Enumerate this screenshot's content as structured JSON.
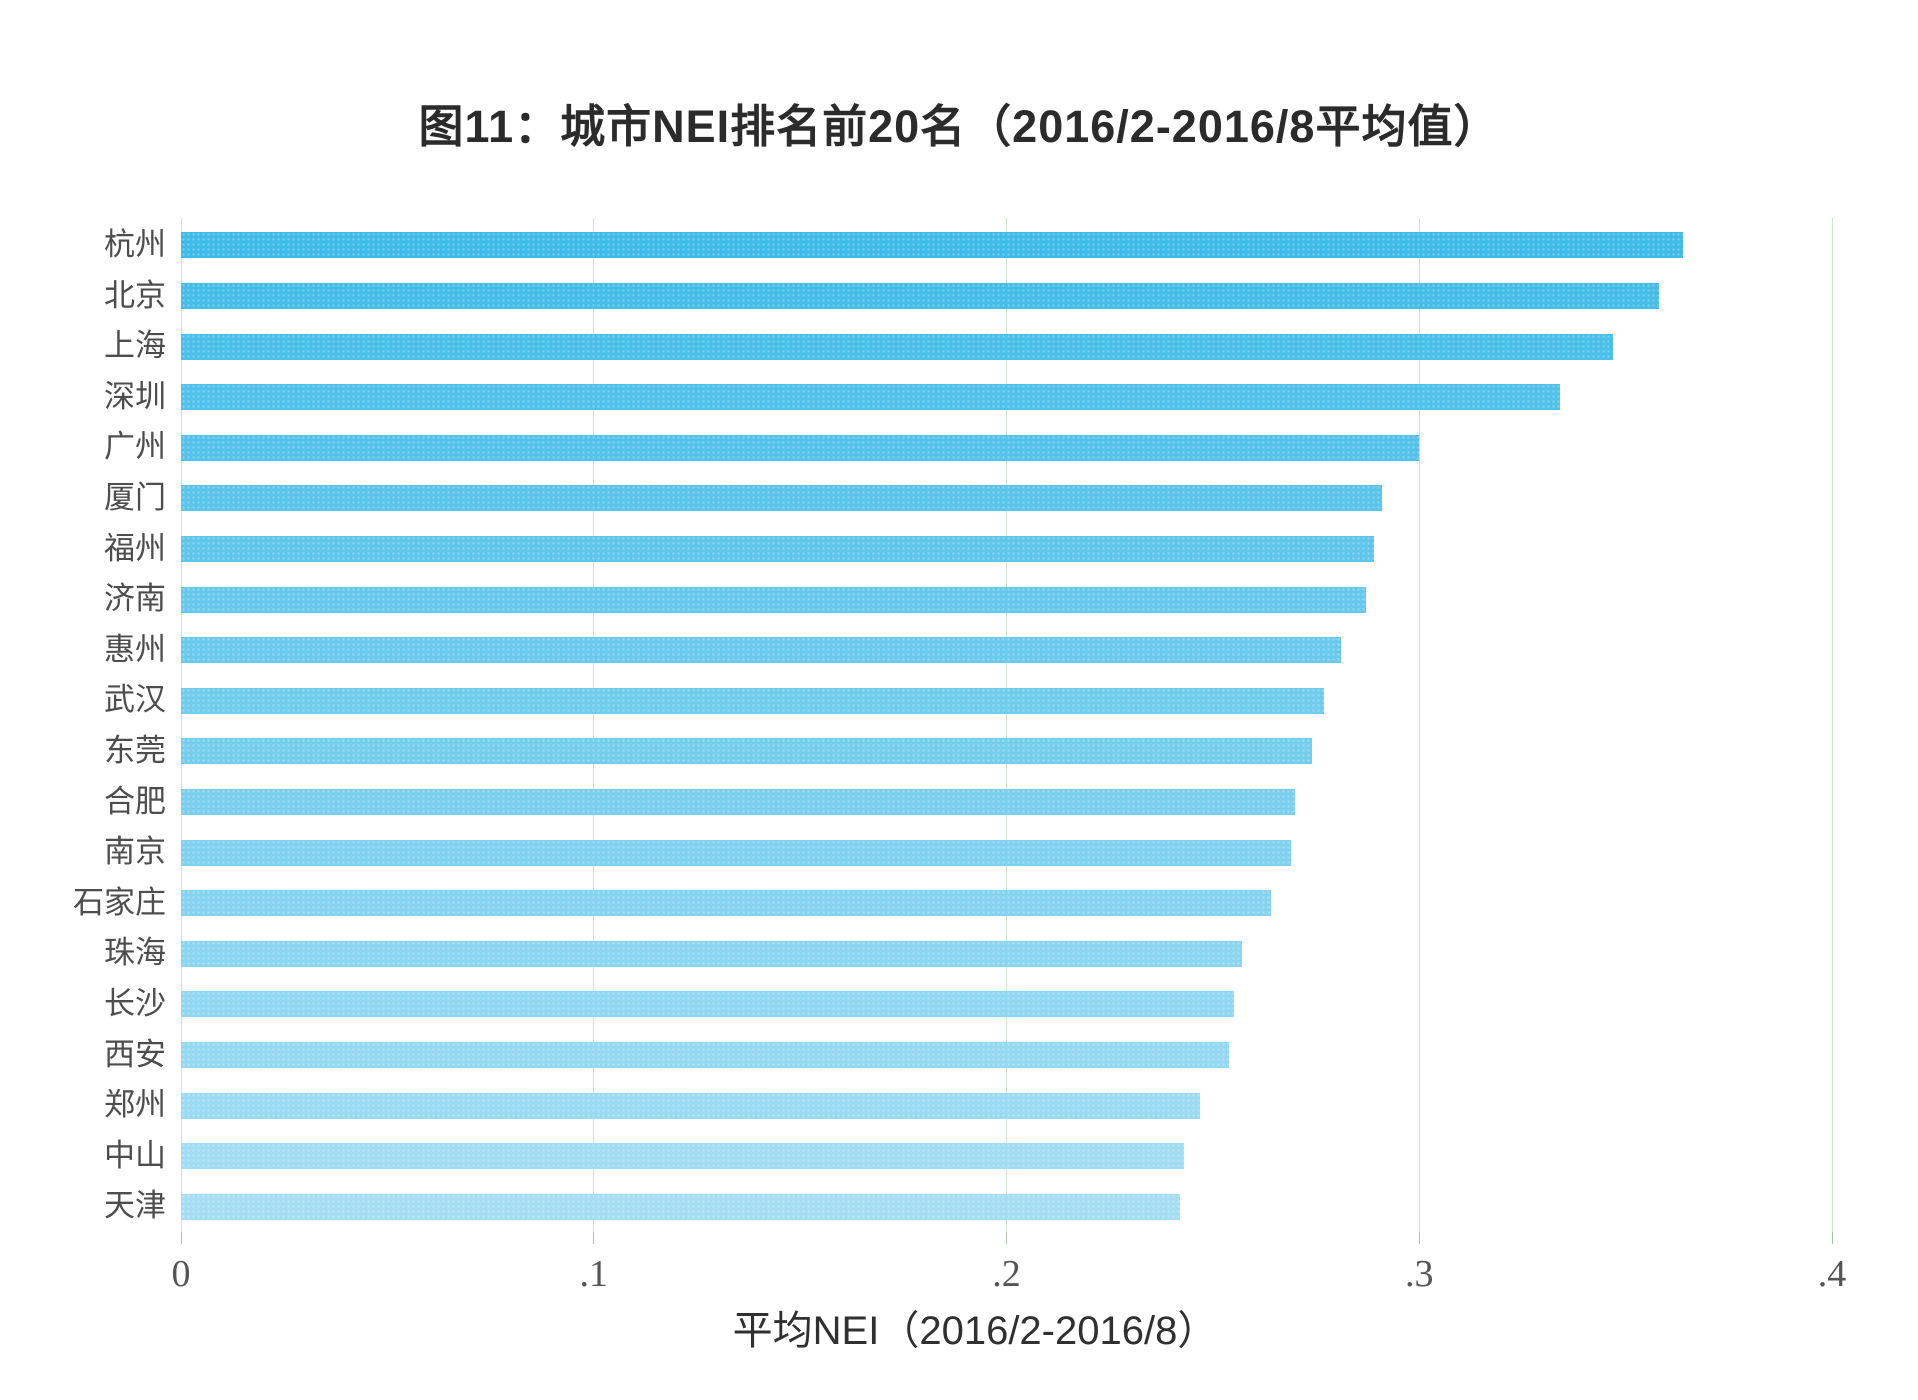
{
  "page": {
    "background": "#ffffff"
  },
  "chart_data": {
    "type": "bar",
    "orientation": "horizontal",
    "title": "图11：城市NEI排名前20名（2016/2-2016/8平均值）",
    "xlabel": "平均NEI（2016/2-2016/8）",
    "categories": [
      "杭州",
      "北京",
      "上海",
      "深圳",
      "广州",
      "厦门",
      "福州",
      "济南",
      "惠州",
      "武汉",
      "东莞",
      "合肥",
      "南京",
      "石家庄",
      "珠海",
      "长沙",
      "西安",
      "郑州",
      "中山",
      "天津"
    ],
    "values": [
      0.364,
      0.358,
      0.347,
      0.334,
      0.3,
      0.291,
      0.289,
      0.287,
      0.281,
      0.277,
      0.274,
      0.27,
      0.269,
      0.264,
      0.257,
      0.255,
      0.254,
      0.247,
      0.243,
      0.242
    ],
    "xlim": [
      0,
      0.4
    ],
    "xticks": {
      "values": [
        0,
        0.1,
        0.2,
        0.3,
        0.4
      ],
      "labels": [
        "0",
        ".1",
        ".2",
        ".3",
        ".4"
      ]
    },
    "grid": "vertical-gridlines",
    "legend": "none",
    "colors": {
      "bar_start": "#3FBBE8",
      "bar_end": "#A5DEF3",
      "gridline": "#D2E0D2",
      "tick_mark": "#AEC4AE",
      "tick_label": "#555555",
      "category_label": "#4D4D4D",
      "title": "#2B2B2B",
      "xlabel_text": "#303030"
    }
  }
}
